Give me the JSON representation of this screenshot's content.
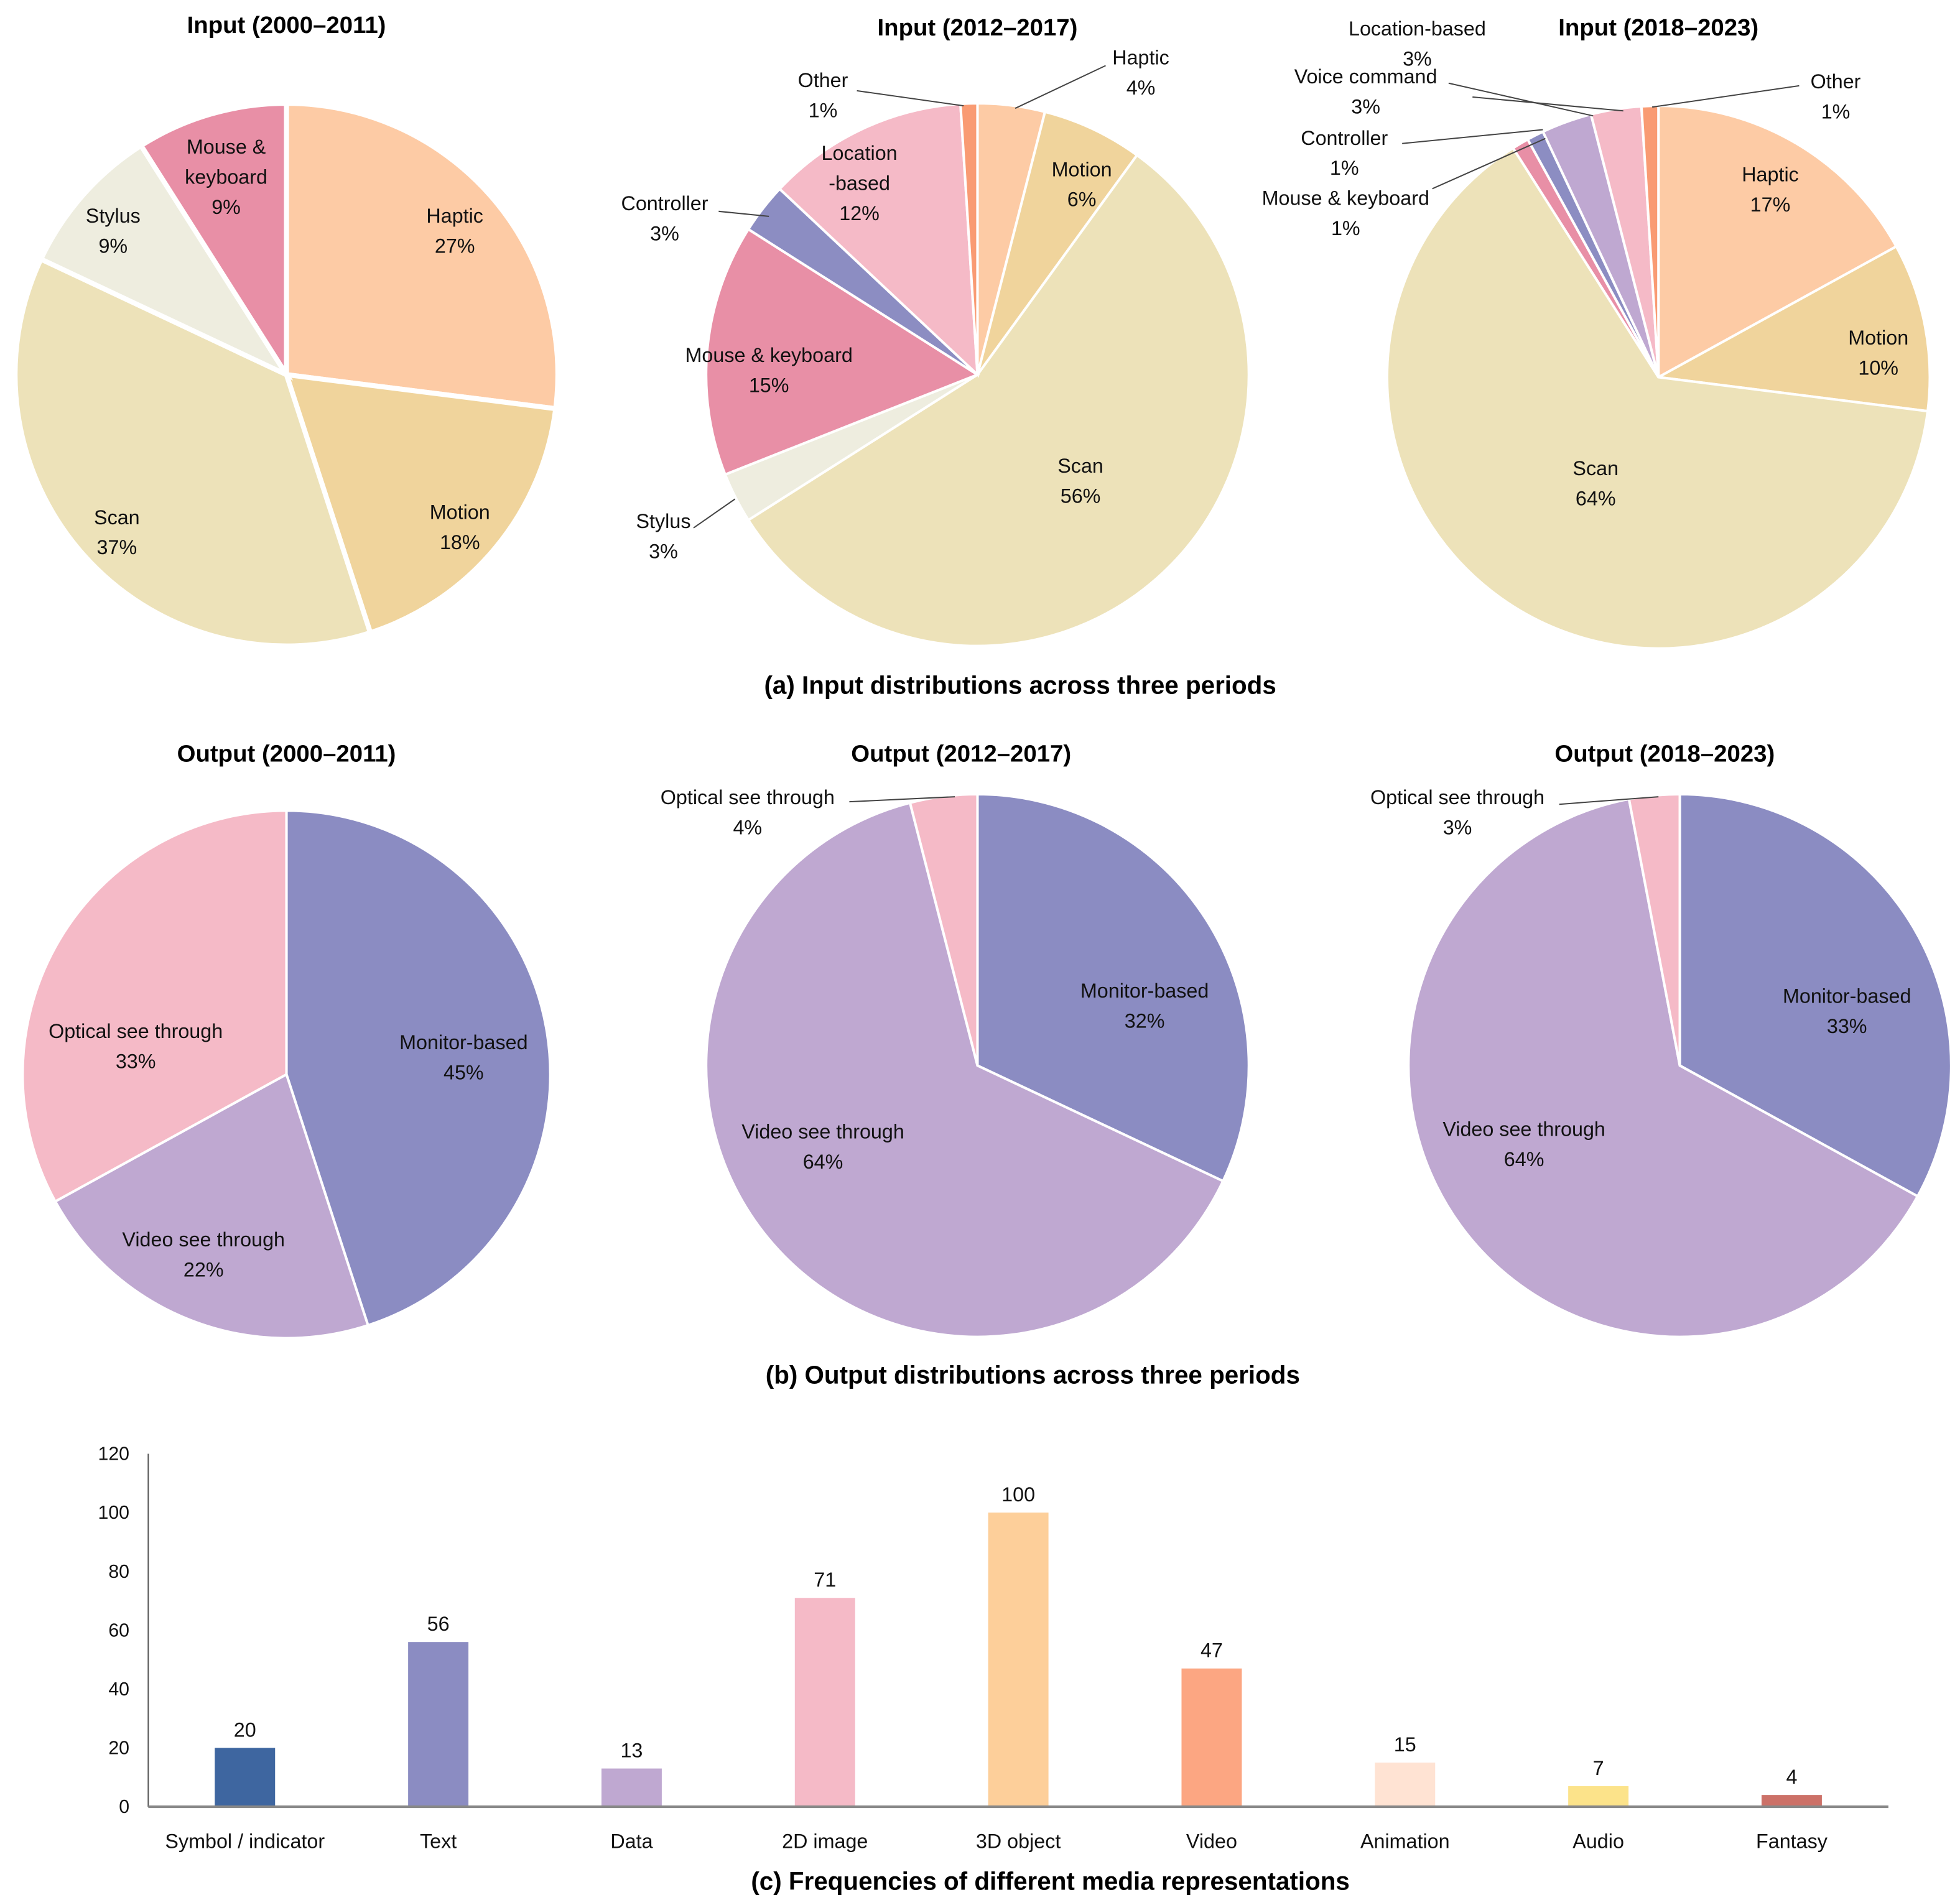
{
  "chart_data": [
    {
      "type": "pie",
      "title": "Input (2000–2011)",
      "slices": [
        {
          "label": "Haptic",
          "value": 27,
          "color": "#FDCBA5"
        },
        {
          "label": "Motion",
          "value": 18,
          "color": "#F0D49C"
        },
        {
          "label": "Scan",
          "value": 37,
          "color": "#EDE2B9"
        },
        {
          "label": "Stylus",
          "value": 9,
          "color": "#EEEDDF"
        },
        {
          "label": "Mouse &\nkeyboard",
          "value": 9,
          "color": "#E88FA6"
        }
      ]
    },
    {
      "type": "pie",
      "title": "Input (2012–2017)",
      "slices": [
        {
          "label": "Haptic",
          "value": 4,
          "color": "#FDCBA5"
        },
        {
          "label": "Motion",
          "value": 6,
          "color": "#F0D49C"
        },
        {
          "label": "Scan",
          "value": 56,
          "color": "#EDE2B9"
        },
        {
          "label": "Stylus",
          "value": 3,
          "color": "#EEEDDF"
        },
        {
          "label": "Mouse & keyboard",
          "value": 15,
          "color": "#E88FA6"
        },
        {
          "label": "Controller",
          "value": 3,
          "color": "#8C8DC2"
        },
        {
          "label": "Location\n-based",
          "value": 12,
          "color": "#F5BAC7"
        },
        {
          "label": "Other",
          "value": 1,
          "color": "#F99B73"
        }
      ]
    },
    {
      "type": "pie",
      "title": "Input (2018–2023)",
      "slices": [
        {
          "label": "Haptic",
          "value": 17,
          "color": "#FDCBA5"
        },
        {
          "label": "Motion",
          "value": 10,
          "color": "#F0D49C"
        },
        {
          "label": "Scan",
          "value": 64,
          "color": "#EDE2B9"
        },
        {
          "label": "Mouse & keyboard",
          "value": 1,
          "color": "#E88FA6"
        },
        {
          "label": "Controller",
          "value": 1,
          "color": "#8C8DC2"
        },
        {
          "label": "Voice command",
          "value": 3,
          "color": "#BFA8D1"
        },
        {
          "label": "Location-based",
          "value": 3,
          "color": "#F5BAC7"
        },
        {
          "label": "Other",
          "value": 1,
          "color": "#F99B73"
        }
      ]
    },
    {
      "type": "pie",
      "title": "Output (2000–2011)",
      "slices": [
        {
          "label": "Monitor-based",
          "value": 45,
          "color": "#8B8CC2"
        },
        {
          "label": "Video see through",
          "value": 22,
          "color": "#BFA8D1"
        },
        {
          "label": "Optical see through",
          "value": 33,
          "color": "#F5BAC7"
        }
      ]
    },
    {
      "type": "pie",
      "title": "Output (2012–2017)",
      "slices": [
        {
          "label": "Monitor-based",
          "value": 32,
          "color": "#8B8CC2"
        },
        {
          "label": "Video see through",
          "value": 64,
          "color": "#BFA8D1"
        },
        {
          "label": "Optical see through",
          "value": 4,
          "color": "#F5BAC7"
        }
      ]
    },
    {
      "type": "pie",
      "title": "Output (2018–2023)",
      "slices": [
        {
          "label": "Monitor-based",
          "value": 33,
          "color": "#8B8CC2"
        },
        {
          "label": "Video see through",
          "value": 64,
          "color": "#BFA8D1"
        },
        {
          "label": "Optical see through",
          "value": 3,
          "color": "#F5BAC7"
        }
      ]
    },
    {
      "type": "bar",
      "title": "(c) Frequencies of different media representations",
      "xlabel": "",
      "ylabel": "",
      "ylim": [
        0,
        120
      ],
      "yticks": [
        0,
        20,
        40,
        60,
        80,
        100,
        120
      ],
      "categories": [
        "Symbol / indicator",
        "Text",
        "Data",
        "2D image",
        "3D object",
        "Video",
        "Animation",
        "Audio",
        "Fantasy"
      ],
      "values": [
        20,
        56,
        13,
        71,
        100,
        47,
        15,
        7,
        4
      ],
      "colors": [
        "#3E66A0",
        "#8B8CC2",
        "#BFA8D1",
        "#F5BAC7",
        "#FDCF9A",
        "#FCA682",
        "#FFE3D3",
        "#FCE38A",
        "#CC7168"
      ]
    }
  ],
  "captions": {
    "a": "(a) Input distributions across three periods",
    "b": "(b) Output distributions across three periods",
    "c": "(c) Frequencies of different media representations"
  }
}
